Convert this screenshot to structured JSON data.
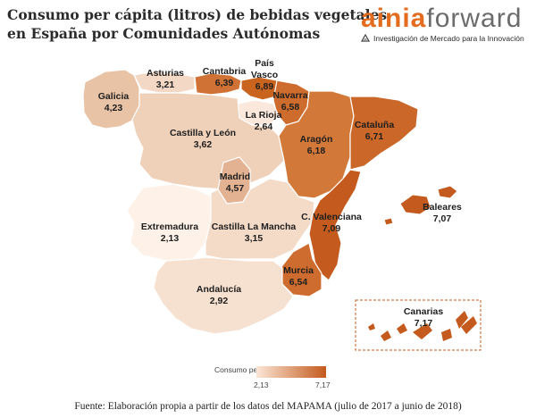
{
  "title": {
    "line1": "Consumo per cápita (litros) de bebidas vegetales",
    "line2": "en España por Comunidades Autónomas"
  },
  "logo": {
    "part1": "ainia",
    "part2": "forward",
    "subtitle": "Investigación de Mercado para la Innovación"
  },
  "legend": {
    "title": "Consumo per cápita",
    "min": "2,13",
    "max": "7,17",
    "color_min": "#fbe6d6",
    "color_max": "#c45a1d"
  },
  "source": "Fuente: Elaboración propia a partir de los datos del MAPAMA (julio de 2017 a junio de 2018)",
  "regions": {
    "galicia": {
      "name": "Galicia",
      "value": "4,23",
      "color": "#e9c3a6"
    },
    "asturias": {
      "name": "Asturias",
      "value": "3,21",
      "color": "#f3d9c5"
    },
    "cantabria": {
      "name": "Cantabria",
      "value": "6,39",
      "color": "#d07236"
    },
    "pais_vasco": {
      "name": "País Vasco",
      "value": "6,89",
      "color": "#c9641f"
    },
    "navarra": {
      "name": "Navarra",
      "value": "6,58",
      "color": "#ce6c2d"
    },
    "la_rioja": {
      "name": "La Rioja",
      "value": "2,64",
      "color": "#f9e8db"
    },
    "castilla_leon": {
      "name": "Castilla y León",
      "value": "3,62",
      "color": "#efd1ba"
    },
    "aragon": {
      "name": "Aragón",
      "value": "6,18",
      "color": "#d27838"
    },
    "cataluna": {
      "name": "Cataluña",
      "value": "6,71",
      "color": "#cb6728"
    },
    "madrid": {
      "name": "Madrid",
      "value": "4,57",
      "color": "#e3b293"
    },
    "extremadura": {
      "name": "Extremadura",
      "value": "2,13",
      "color": "#fdf1e8"
    },
    "castilla_la_mancha": {
      "name": "Castilla La Mancha",
      "value": "3,15",
      "color": "#f4dbc8"
    },
    "c_valenciana": {
      "name": "C. Valenciana",
      "value": "7,09",
      "color": "#c45a1d"
    },
    "murcia": {
      "name": "Murcia",
      "value": "6,54",
      "color": "#cd6c2e"
    },
    "andalucia": {
      "name": "Andalucía",
      "value": "2,92",
      "color": "#f6e0cf"
    },
    "baleares": {
      "name": "Baleares",
      "value": "7,07",
      "color": "#c45a1d"
    },
    "canarias": {
      "name": "Canarias",
      "value": "7,17",
      "color": "#c45a1d"
    }
  }
}
